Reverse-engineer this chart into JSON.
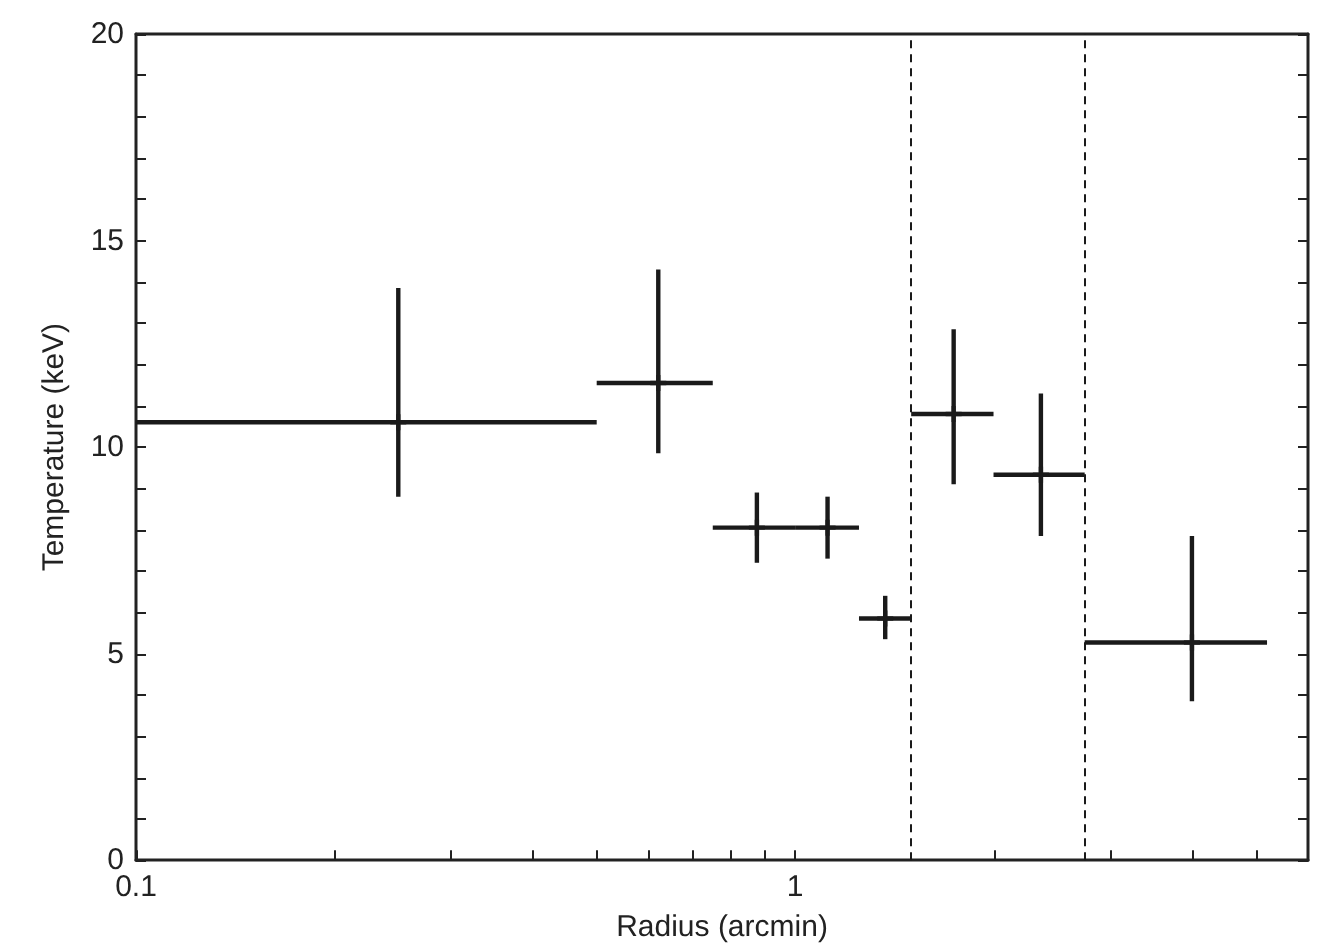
{
  "chart_data": {
    "type": "scatter",
    "xlabel": "Radius (arcmin)",
    "ylabel": "Temperature (keV)",
    "log": "x",
    "xlim": [
      0.1,
      6
    ],
    "ylim": [
      0,
      20
    ],
    "xticks": [
      0.1,
      {
        "value": 0.2,
        "label": null
      },
      {
        "value": 0.3,
        "label": null
      },
      {
        "value": 0.4,
        "label": null
      },
      {
        "value": 0.5,
        "label": null
      },
      {
        "value": 0.6,
        "label": null
      },
      {
        "value": 0.7,
        "label": null
      },
      {
        "value": 0.8,
        "label": null
      },
      {
        "value": 0.9,
        "label": null
      },
      1,
      {
        "value": 2,
        "label": null
      },
      {
        "value": 3,
        "label": null
      },
      {
        "value": 4,
        "label": null
      },
      {
        "value": 5,
        "label": null
      }
    ],
    "yticks": [
      0,
      {
        "value": 1,
        "label": null
      },
      {
        "value": 2,
        "label": null
      },
      {
        "value": 3,
        "label": null
      },
      {
        "value": 4,
        "label": null
      },
      5,
      {
        "value": 6,
        "label": null
      },
      {
        "value": 7,
        "label": null
      },
      {
        "value": 8,
        "label": null
      },
      {
        "value": 9,
        "label": null
      },
      10,
      {
        "value": 11,
        "label": null
      },
      {
        "value": 12,
        "label": null
      },
      {
        "value": 13,
        "label": null
      },
      {
        "value": 14,
        "label": null
      },
      15,
      {
        "value": 16,
        "label": null
      },
      {
        "value": 17,
        "label": null
      },
      {
        "value": 18,
        "label": null
      },
      {
        "value": 19,
        "label": null
      },
      20
    ],
    "marker": "cross",
    "grid": false,
    "series": [
      {
        "color": "#1a1a1a",
        "x": [
          0.25,
          0.62,
          0.875,
          1.12,
          1.37,
          1.74,
          2.36,
          4.0
        ],
        "values": [
          10.6,
          11.55,
          8.05,
          8.05,
          5.85,
          10.8,
          9.33,
          5.27
        ],
        "errors": [
          [
            8.8,
            13.85
          ],
          [
            9.85,
            14.3
          ],
          [
            7.2,
            8.9
          ],
          [
            7.3,
            8.8
          ],
          [
            5.35,
            6.4
          ],
          [
            9.1,
            12.85
          ],
          [
            7.85,
            11.3
          ],
          [
            3.85,
            7.85
          ]
        ],
        "xerrors": [
          [
            0.1,
            0.5
          ],
          [
            0.5,
            0.75
          ],
          [
            0.75,
            1.0
          ],
          [
            1.0,
            1.25
          ],
          [
            1.25,
            1.5
          ],
          [
            1.5,
            2.0
          ],
          [
            2.0,
            2.75
          ],
          [
            2.75,
            5.2
          ]
        ]
      }
    ],
    "ref_lines": [
      {
        "axis": "x",
        "value": 1.5,
        "color": "#1a1a1a",
        "line_style": "dashed"
      },
      {
        "axis": "x",
        "value": 2.75,
        "color": "#1a1a1a",
        "line_style": "dashed"
      }
    ]
  }
}
